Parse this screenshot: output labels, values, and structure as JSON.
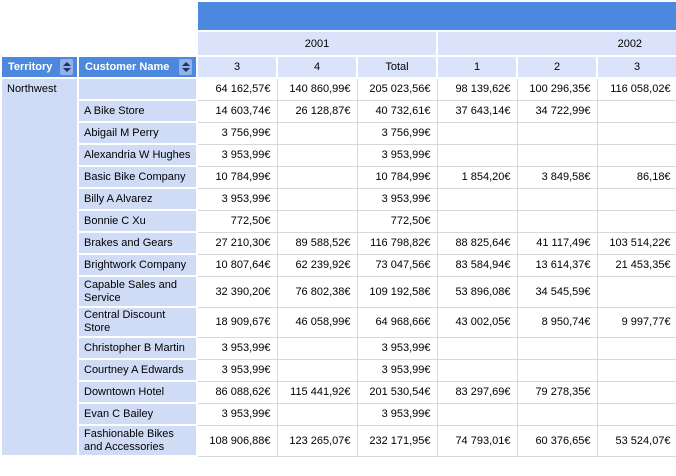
{
  "report": {
    "row_headers": {
      "territory_label": "Territory",
      "customer_label": "Customer Name"
    },
    "year_groups": [
      {
        "label": "2001",
        "quarters": [
          "3",
          "4",
          "Total"
        ]
      },
      {
        "label": "2002",
        "quarters": [
          "1",
          "2",
          "3"
        ]
      }
    ],
    "rows": [
      {
        "territory": "Northwest",
        "name": "",
        "tall": false,
        "values": [
          "64 162,57€",
          "140 860,99€",
          "205 023,56€",
          "98 139,62€",
          "100 296,35€",
          "116 058,02€"
        ]
      },
      {
        "name": "A Bike Store",
        "tall": false,
        "values": [
          "14 603,74€",
          "26 128,87€",
          "40 732,61€",
          "37 643,14€",
          "34 722,99€",
          ""
        ]
      },
      {
        "name": "Abigail M Perry",
        "tall": false,
        "values": [
          "3 756,99€",
          "",
          "3 756,99€",
          "",
          "",
          ""
        ]
      },
      {
        "name": "Alexandria W Hughes",
        "tall": false,
        "values": [
          "3 953,99€",
          "",
          "3 953,99€",
          "",
          "",
          ""
        ]
      },
      {
        "name": "Basic Bike Company",
        "tall": false,
        "values": [
          "10 784,99€",
          "",
          "10 784,99€",
          "1 854,20€",
          "3 849,58€",
          "86,18€"
        ]
      },
      {
        "name": "Billy A Alvarez",
        "tall": false,
        "values": [
          "3 953,99€",
          "",
          "3 953,99€",
          "",
          "",
          ""
        ]
      },
      {
        "name": "Bonnie C Xu",
        "tall": false,
        "values": [
          "772,50€",
          "",
          "772,50€",
          "",
          "",
          ""
        ]
      },
      {
        "name": "Brakes and Gears",
        "tall": false,
        "values": [
          "27 210,30€",
          "89 588,52€",
          "116 798,82€",
          "88 825,64€",
          "41 117,49€",
          "103 514,22€"
        ]
      },
      {
        "name": "Brightwork Company",
        "tall": false,
        "values": [
          "10 807,64€",
          "62 239,92€",
          "73 047,56€",
          "83 584,94€",
          "13 614,37€",
          "21 453,35€"
        ]
      },
      {
        "name": "Capable Sales and Service",
        "tall": true,
        "values": [
          "32 390,20€",
          "76 802,38€",
          "109 192,58€",
          "53 896,08€",
          "34 545,59€",
          ""
        ]
      },
      {
        "name": "Central Discount Store",
        "tall": false,
        "values": [
          "18 909,67€",
          "46 058,99€",
          "64 968,66€",
          "43 002,05€",
          "8 950,74€",
          "9 997,77€"
        ]
      },
      {
        "name": "Christopher B Martin",
        "tall": false,
        "values": [
          "3 953,99€",
          "",
          "3 953,99€",
          "",
          "",
          ""
        ]
      },
      {
        "name": "Courtney A Edwards",
        "tall": false,
        "values": [
          "3 953,99€",
          "",
          "3 953,99€",
          "",
          "",
          ""
        ]
      },
      {
        "name": "Downtown Hotel",
        "tall": false,
        "values": [
          "86 088,62€",
          "115 441,92€",
          "201 530,54€",
          "83 297,69€",
          "79 278,35€",
          ""
        ]
      },
      {
        "name": "Evan C Bailey",
        "tall": false,
        "values": [
          "3 953,99€",
          "",
          "3 953,99€",
          "",
          "",
          ""
        ]
      },
      {
        "name": "Fashionable Bikes and Accessories",
        "tall": true,
        "values": [
          "108 906,88€",
          "123 265,07€",
          "232 171,95€",
          "74 793,01€",
          "60 376,65€",
          "53 524,07€"
        ]
      }
    ],
    "icons": {
      "sort": {
        "name": "sort-asc-desc-icon",
        "shape": "css-triangles-up-down"
      }
    },
    "colors": {
      "header_blue": "#4C88DD",
      "light_blue_band": "#DAE3F9",
      "row_header_blue": "#D0DCF6",
      "grid_line": "#D8D8D8",
      "sort_icon_bg": "#93B1EA",
      "sort_icon_arrow": "#1E3260"
    }
  }
}
